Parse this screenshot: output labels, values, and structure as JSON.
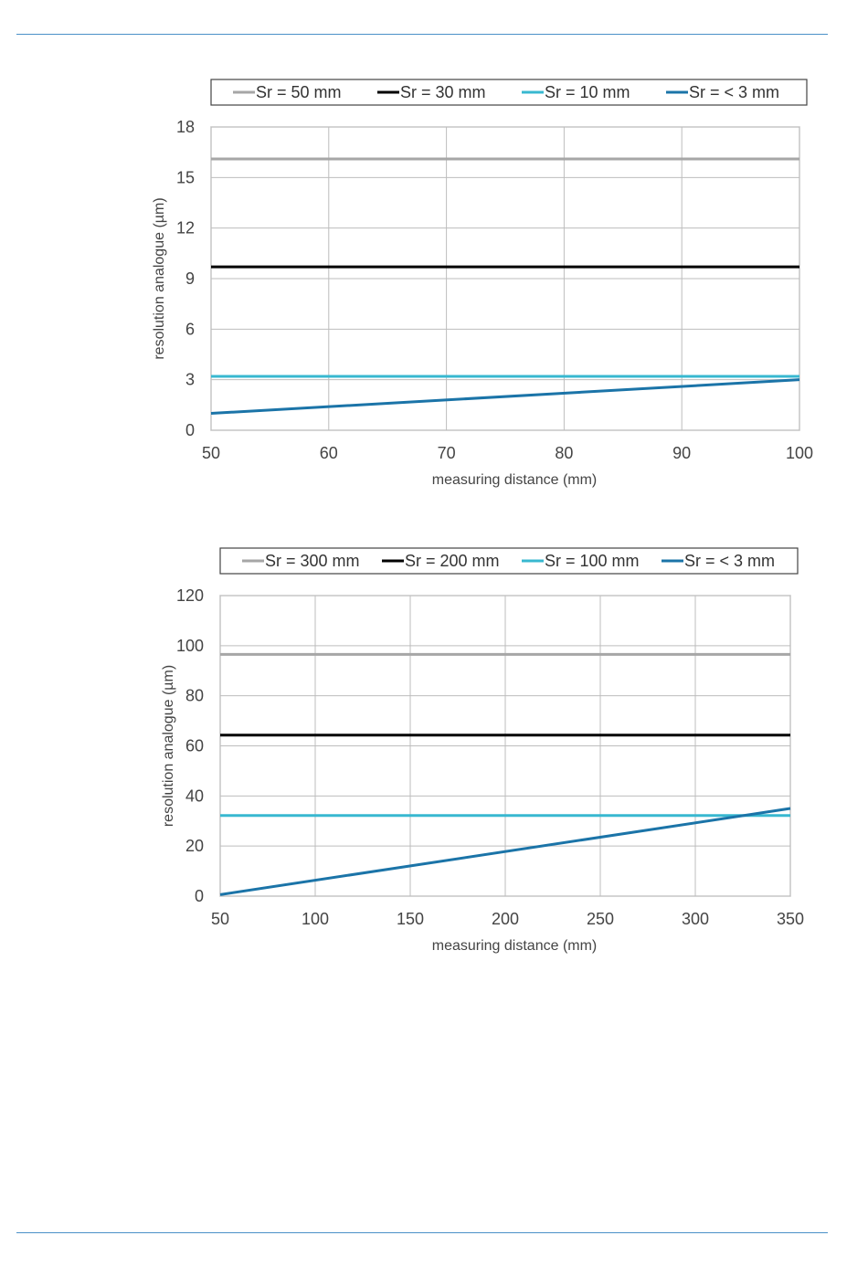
{
  "chart_data": [
    {
      "type": "line",
      "title": "",
      "xlabel": "measuring distance (mm)",
      "ylabel": "resolution analogue (µm)",
      "xlim": [
        50,
        100
      ],
      "ylim": [
        0,
        18
      ],
      "xticks": [
        50,
        60,
        70,
        80,
        90,
        100
      ],
      "yticks": [
        0,
        3,
        6,
        9,
        12,
        15,
        18
      ],
      "grid": true,
      "legend": "top",
      "series": [
        {
          "name": "Sr = 50 mm",
          "color": "#a6a6a6",
          "x": [
            50,
            100
          ],
          "y": [
            16.1,
            16.1
          ]
        },
        {
          "name": "Sr = 30 mm",
          "color": "#000000",
          "x": [
            50,
            100
          ],
          "y": [
            9.7,
            9.7
          ]
        },
        {
          "name": "Sr = 10 mm",
          "color": "#38b8d0",
          "x": [
            50,
            100
          ],
          "y": [
            3.2,
            3.2
          ]
        },
        {
          "name": "Sr = < 3 mm",
          "color": "#1b74a8",
          "x": [
            50,
            100
          ],
          "y": [
            1.0,
            3.0
          ]
        }
      ]
    },
    {
      "type": "line",
      "title": "",
      "xlabel": "measuring distance (mm)",
      "ylabel": "resolution analogue (µm)",
      "xlim": [
        50,
        350
      ],
      "ylim": [
        0,
        120
      ],
      "xticks": [
        50,
        100,
        150,
        200,
        250,
        300,
        350
      ],
      "yticks": [
        0,
        20,
        40,
        60,
        80,
        100,
        120
      ],
      "grid": true,
      "legend": "top",
      "series": [
        {
          "name": "Sr = 300 mm",
          "color": "#a6a6a6",
          "x": [
            50,
            350
          ],
          "y": [
            96.5,
            96.5
          ]
        },
        {
          "name": "Sr = 200 mm",
          "color": "#000000",
          "x": [
            50,
            350
          ],
          "y": [
            64.3,
            64.3
          ]
        },
        {
          "name": "Sr = 100 mm",
          "color": "#38b8d0",
          "x": [
            50,
            350
          ],
          "y": [
            32.2,
            32.2
          ]
        },
        {
          "name": "Sr = < 3 mm",
          "color": "#1b74a8",
          "x": [
            50,
            350
          ],
          "y": [
            0.6,
            35.0
          ]
        }
      ]
    }
  ]
}
